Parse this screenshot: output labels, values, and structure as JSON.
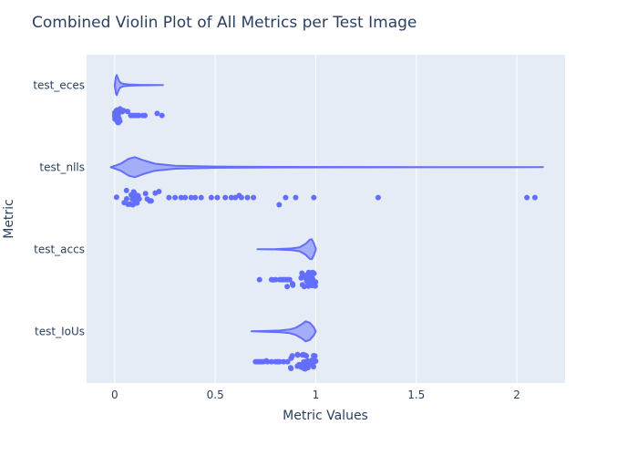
{
  "chart_data": {
    "type": "violin",
    "title": "Combined Violin Plot of All Metrics per Test Image",
    "xlabel": "Metric Values",
    "ylabel": "Metric",
    "xlim": [
      -0.14,
      2.24
    ],
    "xticks": [
      0,
      0.5,
      1,
      1.5,
      2
    ],
    "xtick_labels": [
      "0",
      "0.5",
      "1",
      "1.5",
      "2"
    ],
    "grid": true,
    "colors": {
      "series": "#636efa",
      "plot_bg": "#e5ecf6",
      "grid": "#ffffff",
      "text": "#2a3f5f"
    },
    "categories": [
      "test_eces",
      "test_nlls",
      "test_accs",
      "test_IoUs"
    ],
    "series": [
      {
        "name": "test_eces",
        "kde_x": [
          0.0,
          0.003,
          0.006,
          0.01,
          0.015,
          0.022,
          0.03,
          0.045,
          0.07,
          0.12,
          0.2,
          0.24
        ],
        "kde_density": [
          0.04,
          0.4,
          0.85,
          1.0,
          0.72,
          0.4,
          0.22,
          0.12,
          0.06,
          0.03,
          0.01,
          0.0
        ],
        "outliers": [
          0.08,
          0.09,
          0.1,
          0.11,
          0.12,
          0.14,
          0.15,
          0.235
        ]
      },
      {
        "name": "test_nlls",
        "kde_x": [
          -0.02,
          0.03,
          0.07,
          0.1,
          0.14,
          0.2,
          0.3,
          0.5,
          0.8,
          1.2,
          1.6,
          2.0,
          2.13
        ],
        "kde_density": [
          0.0,
          0.35,
          0.85,
          1.0,
          0.7,
          0.35,
          0.15,
          0.06,
          0.03,
          0.02,
          0.01,
          0.01,
          0.0
        ],
        "outliers": [
          0.27,
          0.3,
          0.33,
          0.35,
          0.38,
          0.4,
          0.43,
          0.48,
          0.51,
          0.55,
          0.58,
          0.6,
          0.63,
          0.66,
          0.69,
          0.85,
          0.9,
          0.99,
          1.31,
          2.05,
          2.09
        ]
      },
      {
        "name": "test_accs",
        "kde_x": [
          0.71,
          0.8,
          0.88,
          0.92,
          0.95,
          0.97,
          0.98,
          0.99,
          1.0
        ],
        "kde_density": [
          0.0,
          0.02,
          0.08,
          0.2,
          0.55,
          0.95,
          1.0,
          0.6,
          0.05
        ],
        "outliers": [
          0.72,
          0.78,
          0.8,
          0.82,
          0.83,
          0.84,
          0.85,
          0.86,
          0.87
        ]
      },
      {
        "name": "test_IoUs",
        "kde_x": [
          0.68,
          0.75,
          0.82,
          0.87,
          0.9,
          0.93,
          0.95,
          0.97,
          0.99,
          1.0
        ],
        "kde_density": [
          0.0,
          0.04,
          0.08,
          0.18,
          0.35,
          0.7,
          1.0,
          0.85,
          0.4,
          0.0
        ],
        "outliers": [
          0.7,
          0.71,
          0.72,
          0.73,
          0.74,
          0.76,
          0.78,
          0.8,
          0.81,
          0.82,
          0.84,
          0.86
        ]
      }
    ]
  }
}
